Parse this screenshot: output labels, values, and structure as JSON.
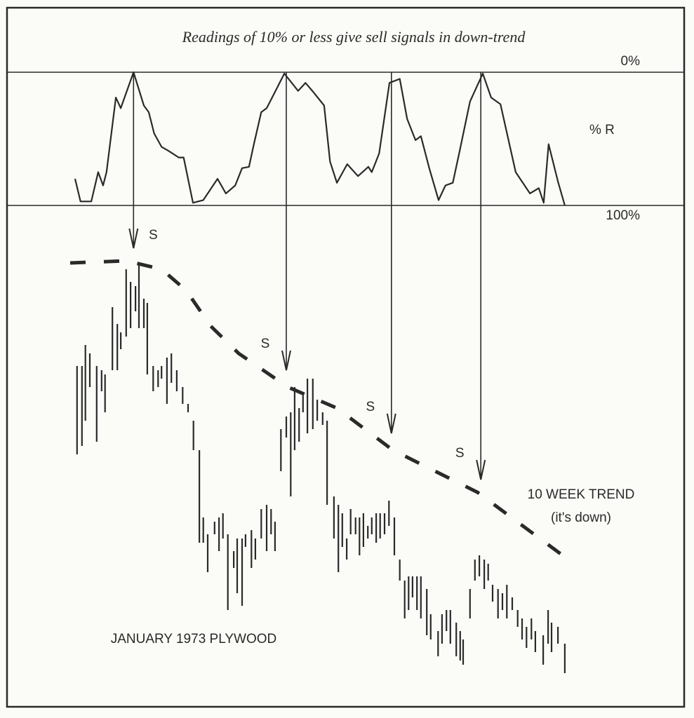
{
  "chart_data": [
    {
      "type": "line",
      "title": "Readings of 10% or less give sell signals in down-trend",
      "label": "% R",
      "x": [
        1,
        2.1,
        4.3,
        5.7,
        6.7,
        7.4,
        9.3,
        10.3,
        12.9,
        15,
        16,
        17.1,
        18.6,
        20,
        22.1,
        23.1,
        25,
        27.1,
        30,
        31.7,
        33.6,
        35,
        36.4,
        37.4,
        38.9,
        40,
        41.4,
        43.6,
        46.4,
        47.9,
        49.3,
        51.7,
        52.9,
        54.3,
        56.4,
        58.6,
        60.7,
        61.4,
        62.9,
        65,
        67.1,
        68.6,
        70.3,
        71.4,
        73.1,
        75,
        76.4,
        77.9,
        79.3,
        81.4,
        84,
        85.7,
        87.6,
        90.7,
        93.6,
        95.4,
        96.4,
        97.4,
        99.3,
        100.7
      ],
      "values": [
        80,
        97,
        97,
        75,
        85,
        75,
        19,
        27,
        0,
        25,
        30,
        46,
        56,
        59,
        64,
        64,
        98,
        96,
        80,
        91,
        85,
        72,
        71,
        54,
        30,
        27,
        17,
        1,
        14,
        8,
        14,
        25,
        67,
        83,
        69,
        78,
        71,
        75,
        61,
        8,
        5,
        35,
        51,
        48,
        72,
        96,
        85,
        83,
        59,
        22,
        1,
        19,
        24,
        75,
        91,
        87,
        98,
        54,
        82,
        100
      ],
      "color": "#2a2a2a",
      "xlim": [
        0,
        102
      ],
      "ylim": [
        100,
        0
      ],
      "yticks": [
        {
          "value": 0,
          "label": "0%"
        },
        {
          "value": 100,
          "label": "100%"
        }
      ]
    },
    {
      "type": "range-bar",
      "title": "JANUARY 1973 PLYWOOD",
      "color": "#2a2a2a",
      "xlim": [
        0,
        102
      ],
      "ylim": [
        0,
        100
      ],
      "x": [
        1.4,
        2.4,
        3.1,
        4,
        5.4,
        6.4,
        7.1,
        8.6,
        9.6,
        10.3,
        11.4,
        12.3,
        13.3,
        14,
        15,
        15.7,
        16.9,
        17.9,
        18.6,
        19.7,
        20.6,
        21.7,
        22.9,
        24,
        25.1,
        26.3,
        27.1,
        28,
        29.4,
        30.3,
        31.1,
        32.1,
        33.3,
        34,
        35,
        35.7,
        36.9,
        37.7,
        38.9,
        40,
        40.9,
        41.7,
        42.9,
        44,
        44.9,
        45.7,
        46.6,
        47.4,
        48.3,
        49.4,
        50.3,
        51.4,
        52.3,
        53.7,
        54.6,
        55.4,
        56.3,
        57.1,
        58.1,
        58.9,
        59.7,
        60.6,
        61.4,
        62.3,
        63.1,
        64,
        64.9,
        66,
        67.1,
        68.1,
        68.9,
        69.7,
        70.6,
        71.4,
        72.6,
        73.4,
        74.9,
        75.7,
        76.6,
        77.4,
        78.6,
        79.4,
        80,
        81.4,
        82.4,
        83.3,
        84.3,
        85.1,
        86,
        87.1,
        88,
        88.9,
        90,
        91.1,
        92,
        92.9,
        93.9,
        94.7,
        96.3,
        97.3,
        98,
        99.3,
        100.7
      ],
      "highs": [
        73,
        73,
        78,
        76,
        73,
        72,
        71,
        87,
        83,
        81,
        96,
        93,
        92,
        97,
        89,
        88,
        73,
        72,
        73,
        75,
        76,
        72,
        68,
        64,
        60,
        53,
        37,
        33,
        36,
        37,
        38,
        33,
        29,
        32,
        32,
        33,
        34,
        32,
        39,
        40,
        39,
        36,
        58,
        61,
        62,
        68,
        63,
        66,
        70,
        70,
        65,
        62,
        60,
        42,
        40,
        38,
        32,
        39,
        37,
        37,
        38,
        35,
        37,
        38,
        38,
        38,
        41,
        37,
        27,
        22,
        23,
        23,
        23,
        23,
        20,
        14,
        10,
        14,
        15,
        15,
        12,
        10,
        8,
        20,
        27,
        28,
        27,
        26,
        21,
        20,
        19,
        21,
        18,
        15,
        13,
        11,
        13,
        10,
        9,
        15,
        12,
        11,
        7
      ],
      "lows": [
        52,
        54,
        60,
        68,
        55,
        67,
        62,
        72,
        72,
        77,
        80,
        82,
        86,
        82,
        82,
        71,
        67,
        68,
        70,
        64,
        69,
        67,
        64,
        62,
        53,
        31,
        31,
        24,
        33,
        29,
        32,
        15,
        25,
        19,
        16,
        30,
        25,
        27,
        32,
        29,
        33,
        29,
        48,
        56,
        42,
        53,
        55,
        62,
        57,
        58,
        60,
        59,
        40,
        32,
        24,
        30,
        27,
        33,
        33,
        28,
        30,
        32,
        33,
        31,
        32,
        33,
        35,
        28,
        22,
        13,
        15,
        18,
        15,
        13,
        9,
        8,
        4,
        7,
        10,
        7,
        4,
        3,
        2,
        13,
        22,
        23,
        20,
        22,
        17,
        13,
        15,
        13,
        15,
        11,
        8,
        6,
        8,
        5,
        2,
        7,
        5,
        7,
        0
      ],
      "trend": {
        "name": "10 WEEK TREND",
        "note": "(it's down)",
        "x": [
          0,
          11.4,
          18.6,
          23.6,
          28.6,
          34.3,
          44.3,
          54.3,
          65.7,
          82.9,
          101.4
        ],
        "values": [
          97.5,
          98,
          96,
          91,
          82.5,
          76,
          68,
          63,
          53,
          43,
          27
        ]
      },
      "signals": [
        {
          "label": "S",
          "x": 12.9,
          "y": 101
        },
        {
          "label": "S",
          "x": 44,
          "y": 72
        },
        {
          "label": "S",
          "x": 65.4,
          "y": 57
        },
        {
          "label": "S",
          "x": 83.6,
          "y": 46
        }
      ]
    }
  ]
}
